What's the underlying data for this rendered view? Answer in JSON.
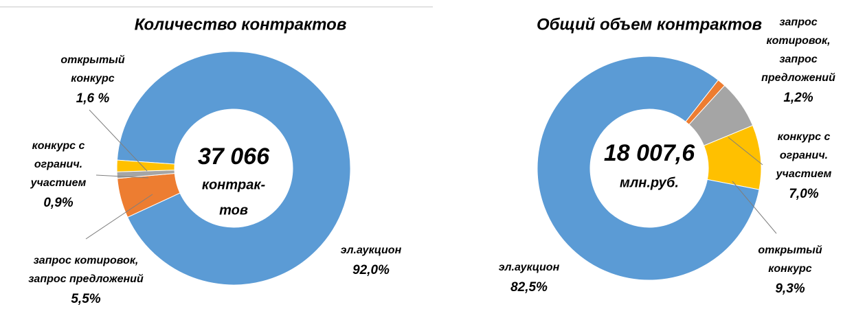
{
  "chart_data": [
    {
      "type": "pie",
      "donut": true,
      "title": "Количество контрактов",
      "center_text": [
        "37 066",
        "контрак-",
        "тов"
      ],
      "start_angle": 274,
      "categories": [
        [
          "эл.аукцион"
        ],
        [
          "запрос котировок,",
          "запрос предложений"
        ],
        [
          "конкурс с",
          "огранич.",
          "участием"
        ],
        [
          "открытый",
          "конкурс"
        ]
      ],
      "values": [
        92.0,
        5.5,
        0.9,
        1.6
      ],
      "value_labels": [
        "92,0%",
        "5,5%",
        "0,9%",
        "1,6 %"
      ],
      "colors": [
        "#5b9bd5",
        "#ed7d31",
        "#a5a5a5",
        "#ffc000"
      ]
    },
    {
      "type": "pie",
      "donut": true,
      "title": "Общий объем контрактов",
      "center_text": [
        "18 007,6",
        "млн.руб."
      ],
      "start_angle": 38,
      "categories": [
        [
          "запрос",
          "котировок,",
          "запрос",
          "предложений"
        ],
        [
          "конкурс с",
          "огранич.",
          "участием"
        ],
        [
          "открытый",
          "конкурс"
        ],
        [
          "эл.аукцион"
        ]
      ],
      "values": [
        1.2,
        7.0,
        9.3,
        82.5
      ],
      "value_labels": [
        "1,2%",
        "7,0%",
        "9,3%",
        "82,5%"
      ],
      "colors": [
        "#ed7d31",
        "#a5a5a5",
        "#ffc000",
        "#5b9bd5"
      ]
    }
  ]
}
